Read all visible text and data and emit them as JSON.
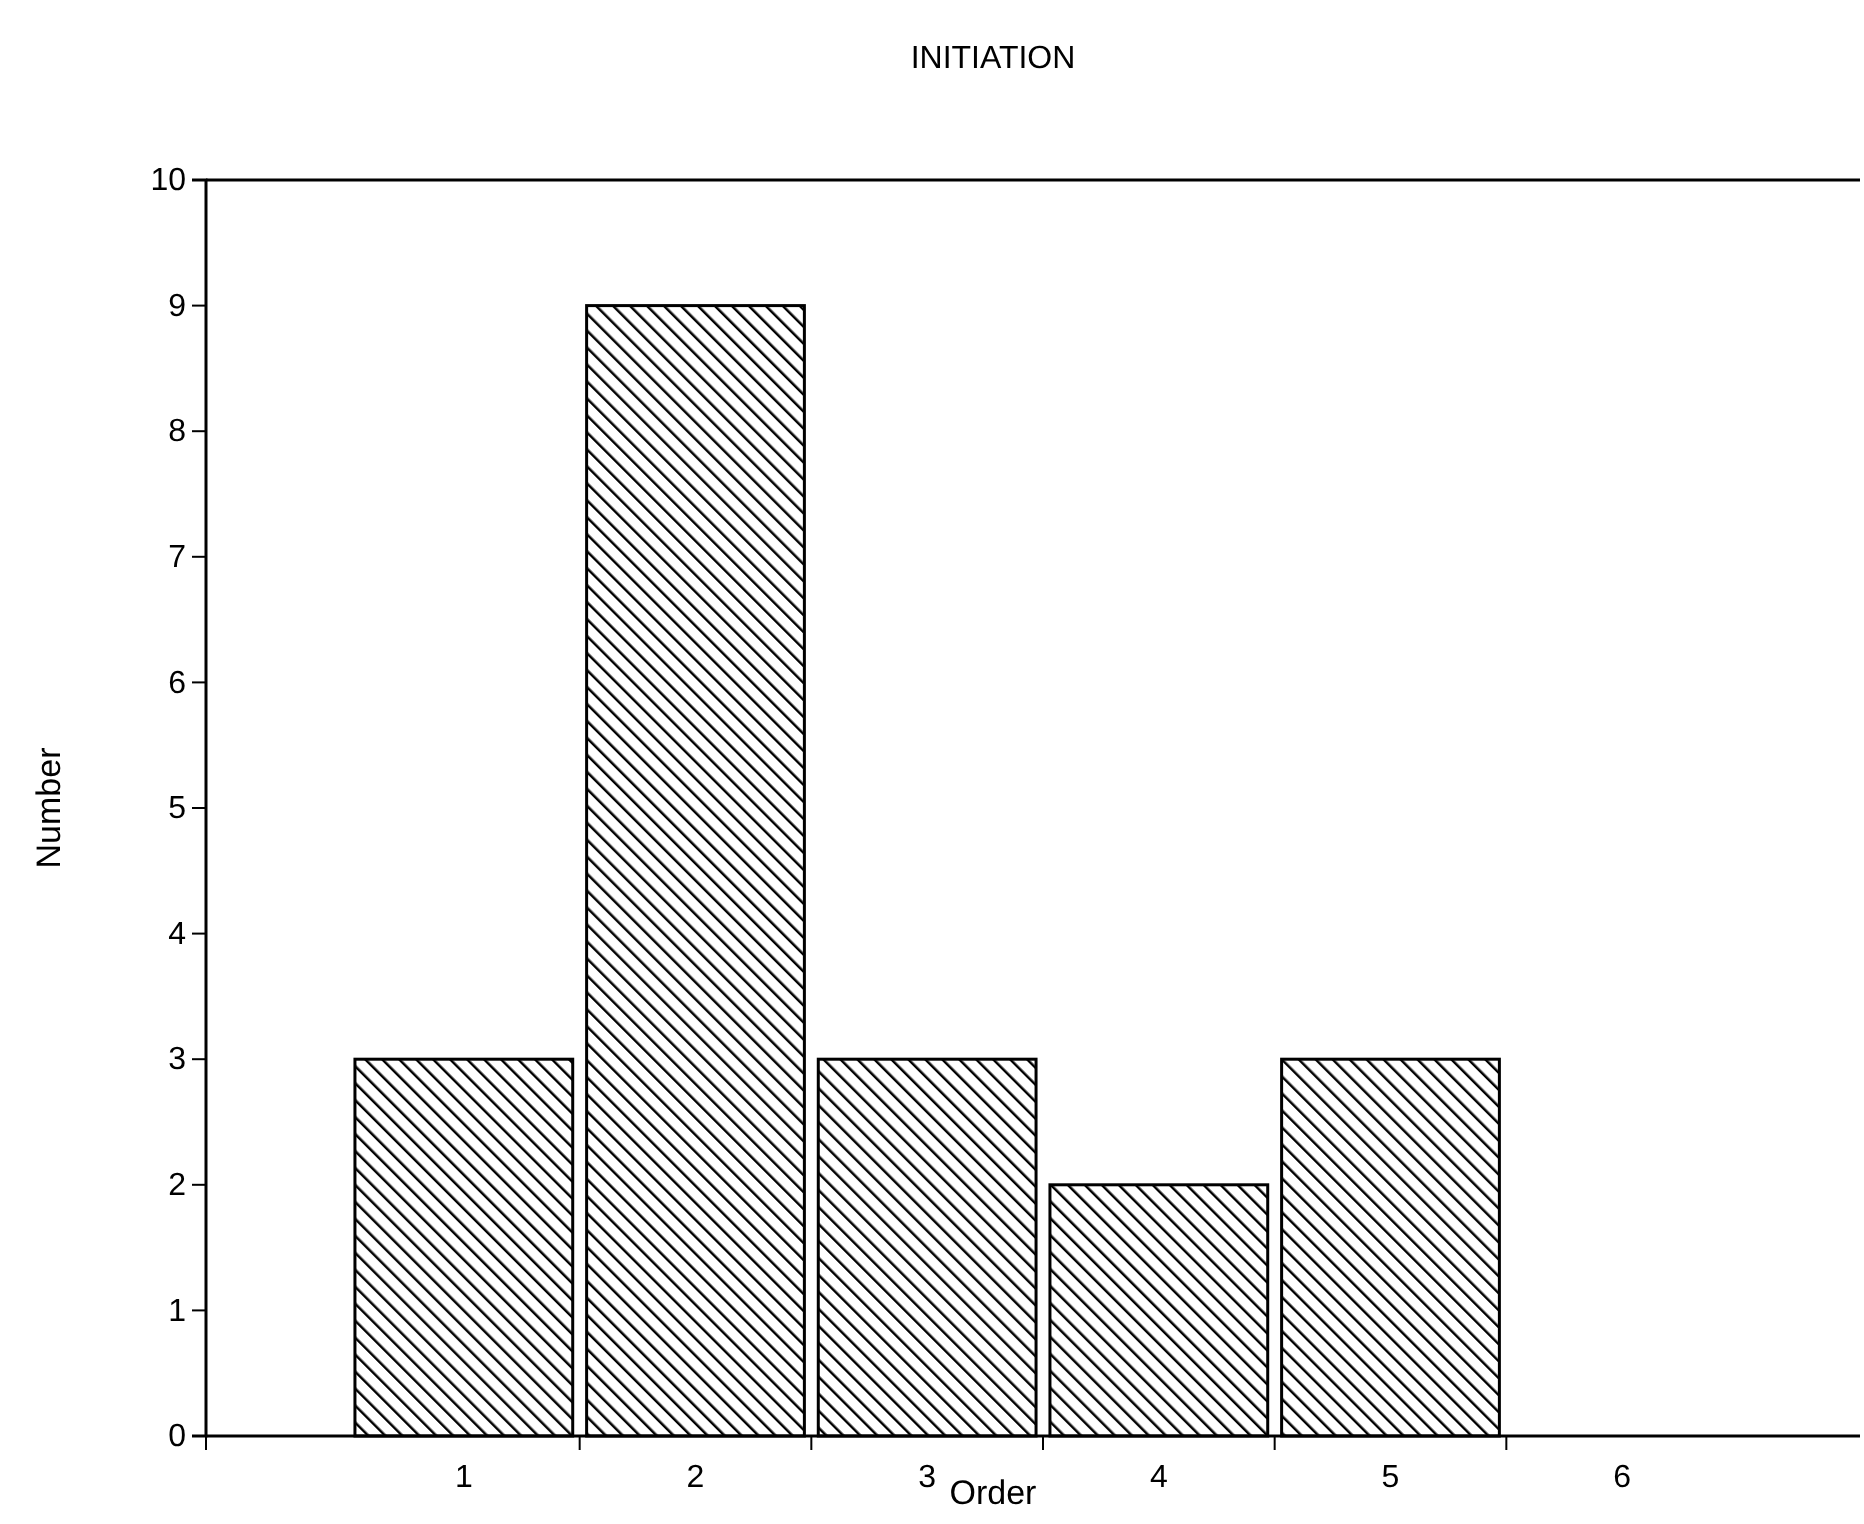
{
  "chart_data": {
    "type": "bar",
    "title": "INITIATION",
    "xlabel": "Order",
    "ylabel": "Number",
    "categories": [
      "1",
      "2",
      "3",
      "4",
      "5",
      "6"
    ],
    "values": [
      3,
      9,
      3,
      2,
      3,
      0
    ],
    "color": "#000000",
    "ylim": [
      0,
      10
    ],
    "yticks": [
      0,
      1,
      2,
      3,
      4,
      5,
      6,
      7,
      8,
      9,
      10
    ],
    "grid": false
  }
}
